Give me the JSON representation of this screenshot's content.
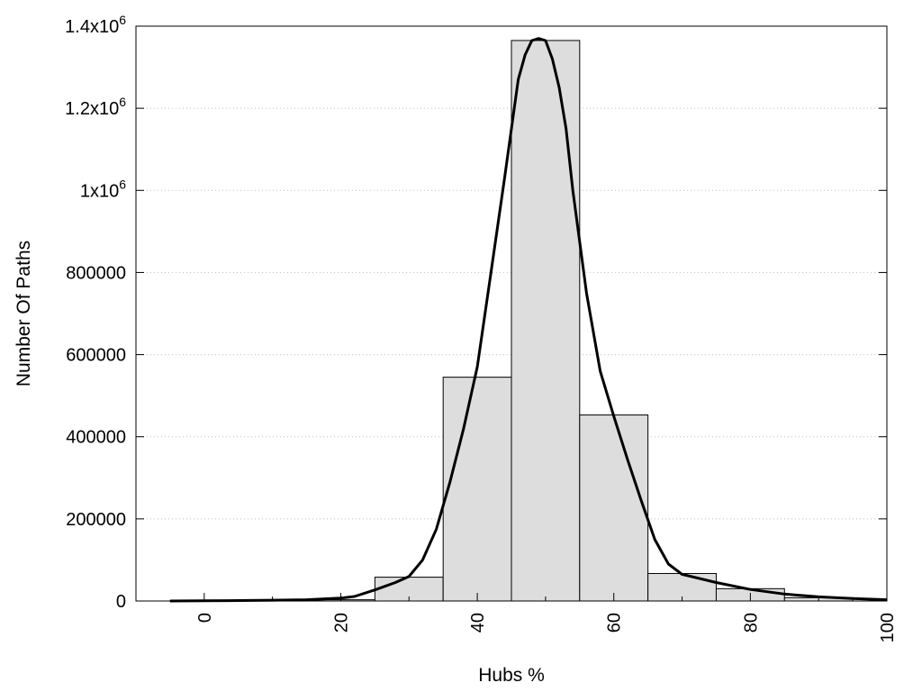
{
  "chart_data": {
    "type": "bar",
    "xlabel": "Hubs %",
    "ylabel": "Number Of Paths",
    "xlim": [
      -10,
      100
    ],
    "ylim": [
      0,
      1400000
    ],
    "grid": {
      "horizontal": true,
      "style": "dotted"
    },
    "x_ticks": [
      {
        "value": 0,
        "label": "0"
      },
      {
        "value": 20,
        "label": "20"
      },
      {
        "value": 40,
        "label": "40"
      },
      {
        "value": 60,
        "label": "60"
      },
      {
        "value": 80,
        "label": "80"
      },
      {
        "value": 100,
        "label": "100"
      }
    ],
    "x_minor_ticks": [
      10,
      30,
      50,
      70,
      90
    ],
    "y_ticks": [
      {
        "value": 0,
        "label": "0",
        "sup": ""
      },
      {
        "value": 200000,
        "label": "200000",
        "sup": ""
      },
      {
        "value": 400000,
        "label": "400000",
        "sup": ""
      },
      {
        "value": 600000,
        "label": "600000",
        "sup": ""
      },
      {
        "value": 800000,
        "label": "800000",
        "sup": ""
      },
      {
        "value": 1000000,
        "label": "1x10",
        "sup": "6"
      },
      {
        "value": 1200000,
        "label": "1.2x10",
        "sup": "6"
      },
      {
        "value": 1400000,
        "label": "1.4x10",
        "sup": "6"
      }
    ],
    "bar_width": 10,
    "bars": [
      {
        "x": 0,
        "value": 500
      },
      {
        "x": 10,
        "value": 1000
      },
      {
        "x": 20,
        "value": 3000
      },
      {
        "x": 30,
        "value": 58000
      },
      {
        "x": 40,
        "value": 545000
      },
      {
        "x": 50,
        "value": 1365000
      },
      {
        "x": 60,
        "value": 453000
      },
      {
        "x": 70,
        "value": 67000
      },
      {
        "x": 80,
        "value": 30000
      },
      {
        "x": 90,
        "value": 8000
      }
    ],
    "curve": {
      "x": [
        -5,
        0,
        5,
        10,
        15,
        20,
        22,
        25,
        28,
        30,
        32,
        34,
        36,
        38,
        40,
        42,
        44,
        45,
        46,
        47,
        48,
        49,
        50,
        51,
        52,
        53,
        54,
        56,
        58,
        60,
        62,
        64,
        66,
        68,
        70,
        75,
        80,
        85,
        90,
        95,
        100
      ],
      "y": [
        0,
        500,
        1000,
        2000,
        3000,
        7000,
        11000,
        27000,
        45000,
        60000,
        100000,
        175000,
        290000,
        420000,
        570000,
        800000,
        1030000,
        1150000,
        1270000,
        1330000,
        1365000,
        1370000,
        1365000,
        1320000,
        1250000,
        1150000,
        1000000,
        750000,
        560000,
        450000,
        345000,
        245000,
        150000,
        90000,
        65000,
        45000,
        28000,
        17000,
        10000,
        6000,
        3000
      ]
    },
    "colors": {
      "bar_fill": "#dddddd",
      "bar_stroke": "#000000",
      "curve": "#000000",
      "grid": "#bfbfbf",
      "axis": "#000000"
    }
  }
}
